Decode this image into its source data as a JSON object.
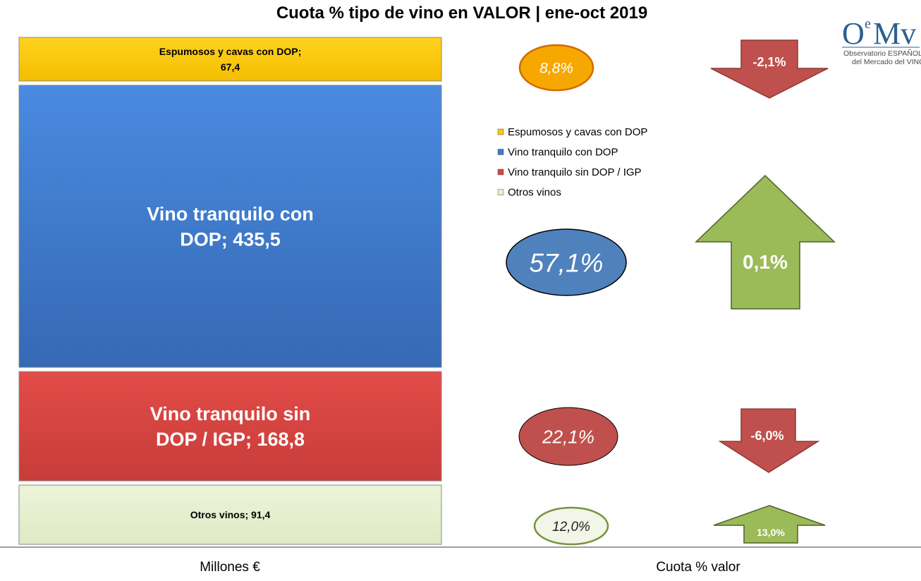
{
  "logo": {
    "mark_main": "O",
    "mark_sup": "e",
    "mark_end": "Mv",
    "line1": "Observatorio ESPAÑOL",
    "line2": "del Mercado del VINO"
  },
  "legend": {
    "position": "right-middle",
    "entries": [
      "Espumosos y cavas con DOP",
      "Vino tranquilo con DOP",
      "Vino tranquilo sin DOP / IGP",
      "Otros vinos"
    ]
  },
  "footer": {
    "left_label": "Millones €",
    "right_label": "Cuota % valor"
  },
  "colors": {
    "espumosos": "#fcc800",
    "dop": "#3f7bcd",
    "sin_dop": "#d64542",
    "otros": "#e6efcc",
    "arrow_down": "#c0504d",
    "arrow_up": "#9bbb59",
    "ellipse_orange": "#f7a800",
    "ellipse_blue": "#4f81bd",
    "ellipse_red": "#c0504d",
    "ellipse_green_fill": "#f2f5e8",
    "ellipse_green_border": "#77933c"
  },
  "chart_data": {
    "type": "bar",
    "subtype": "stacked-100",
    "title": "Cuota % tipo de vino en VALOR | ene-oct 2019",
    "unit": "Millones €",
    "categories": [
      "Espumosos y cavas con DOP",
      "Vino tranquilo con DOP",
      "Vino tranquilo sin DOP / IGP",
      "Otros vinos"
    ],
    "series": [
      {
        "name": "Espumosos y cavas con DOP",
        "value": 67.4,
        "label": "Espumosos y cavas con DOP;\n67,4",
        "share": 8.8,
        "share_label": "8,8%",
        "change": -2.1,
        "change_label": "-2,1%"
      },
      {
        "name": "Vino tranquilo con DOP",
        "value": 435.5,
        "label": "Vino tranquilo con\nDOP; 435,5",
        "share": 57.1,
        "share_label": "57,1%",
        "change": 0.1,
        "change_label": "0,1%"
      },
      {
        "name": "Vino tranquilo sin DOP / IGP",
        "value": 168.8,
        "label": "Vino tranquilo sin\nDOP / IGP; 168,8",
        "share": 22.1,
        "share_label": "22,1%",
        "change": -6.0,
        "change_label": "-6,0%"
      },
      {
        "name": "Otros vinos",
        "value": 91.4,
        "label": "Otros vinos; 91,4",
        "share": 12.0,
        "share_label": "12,0%",
        "change": 13.0,
        "change_label": "13,0%"
      }
    ]
  }
}
